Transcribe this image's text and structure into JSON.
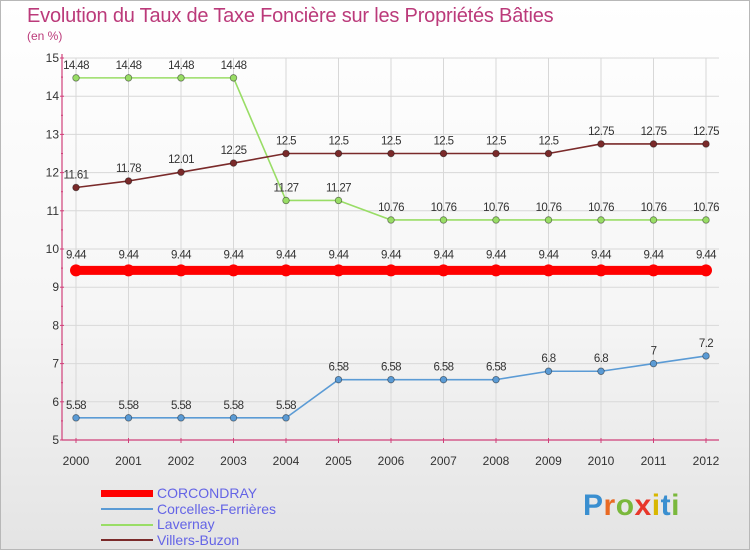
{
  "header": {
    "title": "Evolution du Taux de Taxe Foncière sur les Propriétés Bâties",
    "unit": "(en %)"
  },
  "brand": {
    "letters": [
      "P",
      "r",
      "o",
      "x",
      "i",
      "t",
      "i"
    ],
    "colors": [
      "#3a8fd0",
      "#e96a23",
      "#7ab83c",
      "#e8372b",
      "#d8b700",
      "#3a8fd0",
      "#7ab83c"
    ]
  },
  "colors": {
    "axis": "#d0407a",
    "grid": "#d8d8d8",
    "label": "#333333"
  },
  "chart_data": {
    "type": "line",
    "title": "Evolution du Taux de Taxe Foncière sur les Propriétés Bâties",
    "ylabel": "(en %)",
    "xlabel": "",
    "ylim": [
      5,
      15
    ],
    "y_ticks": [
      "5",
      "6",
      "7",
      "8",
      "9",
      "10",
      "11",
      "12",
      "13",
      "14",
      "15"
    ],
    "categories": [
      "2000",
      "2001",
      "2002",
      "2003",
      "2004",
      "2005",
      "2006",
      "2007",
      "2008",
      "2009",
      "2010",
      "2011",
      "2012"
    ],
    "grid": true,
    "legend_position": "bottom-left",
    "series": [
      {
        "name": "CORCONDRAY",
        "color": "#ff0000",
        "values": [
          9.44,
          9.44,
          9.44,
          9.44,
          9.44,
          9.44,
          9.44,
          9.44,
          9.44,
          9.44,
          9.44,
          9.44,
          9.44
        ],
        "labels": [
          "9.44",
          "9.44",
          "9.44",
          "9.44",
          "9.44",
          "9.44",
          "9.44",
          "9.44",
          "9.44",
          "9.44",
          "9.44",
          "9.44",
          "9.44"
        ],
        "legend_color": "#6464e6"
      },
      {
        "name": "Corcelles-Ferrières",
        "color": "#5b9bd5",
        "values": [
          5.58,
          5.58,
          5.58,
          5.58,
          5.58,
          6.58,
          6.58,
          6.58,
          6.58,
          6.8,
          6.8,
          7,
          7.2
        ],
        "labels": [
          "5.58",
          "5.58",
          "5.58",
          "5.58",
          "5.58",
          "6.58",
          "6.58",
          "6.58",
          "6.58",
          "6.8",
          "6.8",
          "7",
          "7.2"
        ],
        "legend_color": "#6464e6"
      },
      {
        "name": "Lavernay",
        "color": "#99dd66",
        "values": [
          14.48,
          14.48,
          14.48,
          14.48,
          11.27,
          11.27,
          10.76,
          10.76,
          10.76,
          10.76,
          10.76,
          10.76,
          10.76
        ],
        "labels": [
          "14.48",
          "14.48",
          "14.48",
          "14.48",
          "11.27",
          "11.27",
          "10.76",
          "10.76",
          "10.76",
          "10.76",
          "10.76",
          "10.76",
          "10.76"
        ],
        "legend_color": "#6464e6"
      },
      {
        "name": "Villers-Buzon",
        "color": "#7a2a2a",
        "values": [
          11.61,
          11.78,
          12.01,
          12.25,
          12.5,
          12.5,
          12.5,
          12.5,
          12.5,
          12.5,
          12.75,
          12.75,
          12.75
        ],
        "labels": [
          "11.61",
          "11.78",
          "12.01",
          "12.25",
          "12.5",
          "12.5",
          "12.5",
          "12.5",
          "12.5",
          "12.5",
          "12.75",
          "12.75",
          "12.75"
        ],
        "legend_color": "#6464e6"
      }
    ]
  }
}
